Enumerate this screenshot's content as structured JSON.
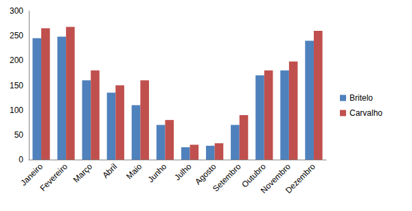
{
  "chart_data": {
    "type": "bar",
    "categories": [
      "Janeiro",
      "Fevereiro",
      "Março",
      "Abril",
      "Maio",
      "Junho",
      "Julho",
      "Agosto",
      "Setembro",
      "Outubro",
      "Novembro",
      "Dezembro"
    ],
    "series": [
      {
        "name": "Britelo",
        "color": "#4f81bd",
        "values": [
          245,
          248,
          160,
          135,
          110,
          70,
          25,
          28,
          70,
          170,
          180,
          240
        ]
      },
      {
        "name": "Carvalho",
        "color": "#c0504d",
        "values": [
          265,
          268,
          180,
          150,
          160,
          80,
          30,
          33,
          90,
          180,
          198,
          260
        ]
      }
    ],
    "ylim": [
      0,
      300
    ],
    "yticks": [
      0,
      50,
      100,
      150,
      200,
      250,
      300
    ],
    "grid": false,
    "legend": "right"
  }
}
